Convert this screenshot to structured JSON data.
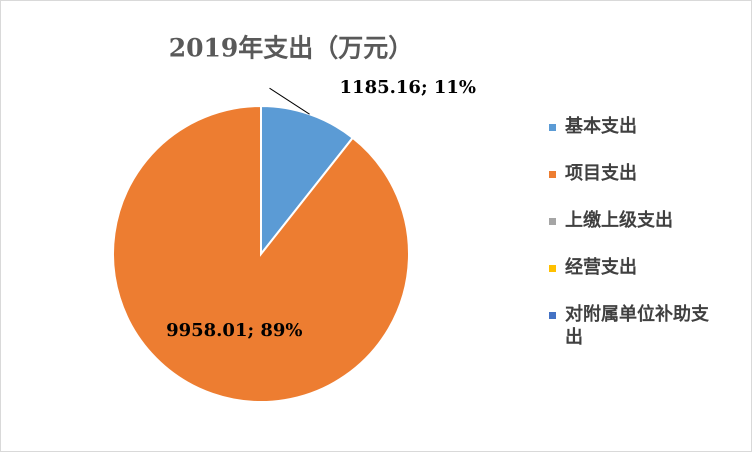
{
  "chart_data": {
    "type": "pie",
    "title": "2019年支出（万元）",
    "categories": [
      "基本支出",
      "项目支出",
      "上缴上级支出",
      "经营支出",
      "对附属单位补助支出"
    ],
    "values": [
      1185.16,
      9958.01,
      0,
      0,
      0
    ],
    "value_labels": [
      "1185.16; 11%",
      "9958.01; 89%",
      null,
      null,
      null
    ],
    "colors": [
      "#5b9bd5",
      "#ed7d31",
      "#a5a5a5",
      "#ffc000",
      "#4472c4"
    ],
    "legend": "right"
  }
}
